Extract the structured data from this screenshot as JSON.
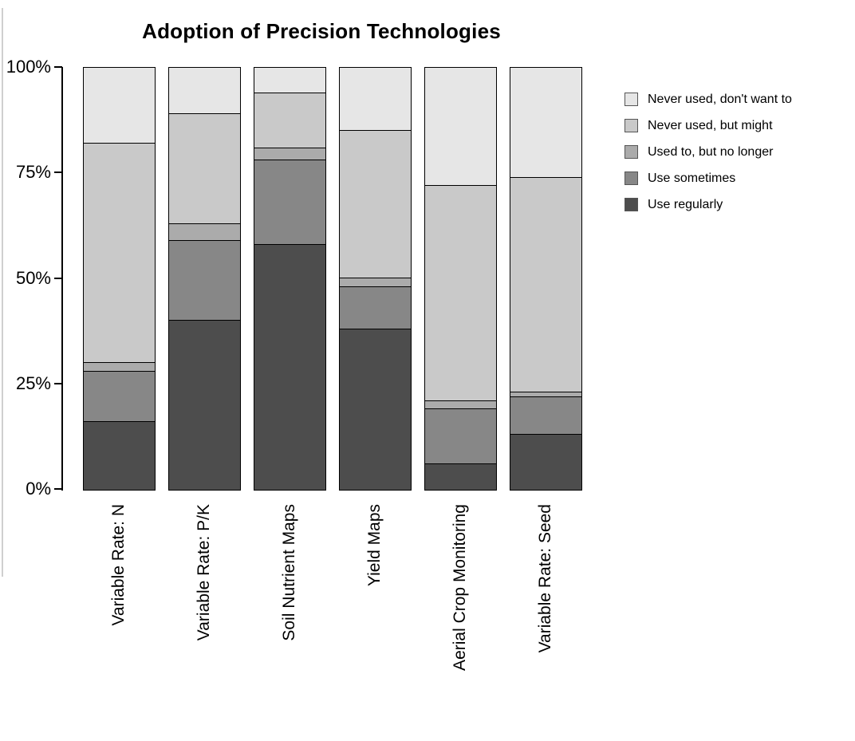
{
  "title": "Adoption of Precision Technologies",
  "y_axis": {
    "ticks": [
      {
        "label": "100%",
        "value": 100
      },
      {
        "label": "75%",
        "value": 75
      },
      {
        "label": "50%",
        "value": 50
      },
      {
        "label": "25%",
        "value": 25
      },
      {
        "label": "0%",
        "value": 0
      }
    ]
  },
  "legend": {
    "items": [
      {
        "label": "Never used, don't want to",
        "color": "#E6E6E6"
      },
      {
        "label": "Never used, but might",
        "color": "#C9C9C9"
      },
      {
        "label": "Used to, but no longer",
        "color": "#ABABAB"
      },
      {
        "label": "Use sometimes",
        "color": "#878787"
      },
      {
        "label": "Use regularly",
        "color": "#4D4D4D"
      }
    ]
  },
  "chart_data": {
    "type": "bar",
    "stacked": true,
    "units": "percent",
    "title": "Adoption of Precision Technologies",
    "categories": [
      "Variable Rate: N",
      "Variable Rate: P/K",
      "Soil Nutrient Maps",
      "Yield Maps",
      "Aerial Crop Monitoring",
      "Variable Rate: Seed"
    ],
    "series": [
      {
        "name": "Use regularly",
        "color": "#4D4D4D",
        "values": [
          16,
          40,
          58,
          38,
          6,
          13
        ]
      },
      {
        "name": "Use sometimes",
        "color": "#878787",
        "values": [
          12,
          19,
          20,
          10,
          13,
          9
        ]
      },
      {
        "name": "Used to, but no longer",
        "color": "#ABABAB",
        "values": [
          2,
          4,
          3,
          2,
          2,
          1
        ]
      },
      {
        "name": "Never used, but might",
        "color": "#C9C9C9",
        "values": [
          52,
          26,
          13,
          35,
          51,
          51
        ]
      },
      {
        "name": "Never used, don't want to",
        "color": "#E6E6E6",
        "values": [
          18,
          11,
          6,
          15,
          28,
          26
        ]
      }
    ],
    "xlabel": "",
    "ylabel": "",
    "ylim": [
      0,
      100
    ],
    "y_tick_labels": [
      "0%",
      "25%",
      "50%",
      "75%",
      "100%"
    ],
    "grid": false,
    "legend_position": "top-right",
    "bar_orientation": "vertical",
    "x_label_rotation_deg": 90
  }
}
